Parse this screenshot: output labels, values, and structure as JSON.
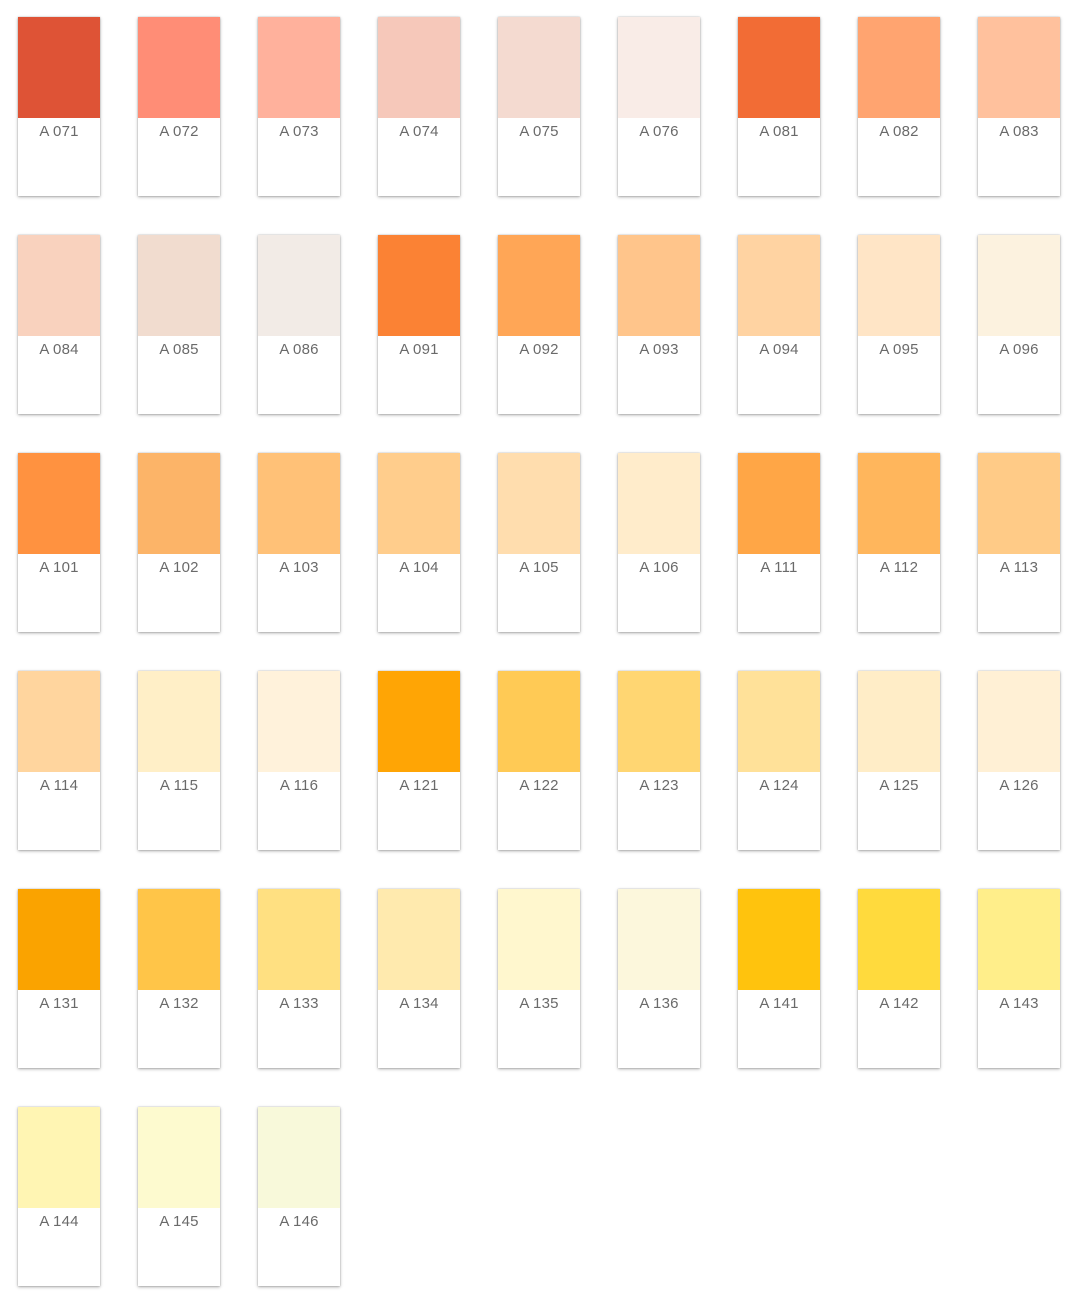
{
  "swatches": [
    {
      "code": "A 071",
      "color": "#DE5336"
    },
    {
      "code": "A 072",
      "color": "#FF8D76"
    },
    {
      "code": "A 073",
      "color": "#FFB19C"
    },
    {
      "code": "A 074",
      "color": "#F6C8BA"
    },
    {
      "code": "A 075",
      "color": "#F4DAD0"
    },
    {
      "code": "A 076",
      "color": "#F9ECE7"
    },
    {
      "code": "A 081",
      "color": "#F26C35"
    },
    {
      "code": "A 082",
      "color": "#FFA470"
    },
    {
      "code": "A 083",
      "color": "#FFC19D"
    },
    {
      "code": "A 084",
      "color": "#F9D2BE"
    },
    {
      "code": "A 085",
      "color": "#F1DCCF"
    },
    {
      "code": "A 086",
      "color": "#F2EBE6"
    },
    {
      "code": "A 091",
      "color": "#FB8234"
    },
    {
      "code": "A 092",
      "color": "#FFA656"
    },
    {
      "code": "A 093",
      "color": "#FFC58B"
    },
    {
      "code": "A 094",
      "color": "#FFD3A2"
    },
    {
      "code": "A 095",
      "color": "#FFE5C6"
    },
    {
      "code": "A 096",
      "color": "#FCF2DF"
    },
    {
      "code": "A 101",
      "color": "#FF9240"
    },
    {
      "code": "A 102",
      "color": "#FCB468"
    },
    {
      "code": "A 103",
      "color": "#FFC177"
    },
    {
      "code": "A 104",
      "color": "#FFCD8C"
    },
    {
      "code": "A 105",
      "color": "#FFDDAE"
    },
    {
      "code": "A 106",
      "color": "#FFECCB"
    },
    {
      "code": "A 111",
      "color": "#FFA646"
    },
    {
      "code": "A 112",
      "color": "#FFB65C"
    },
    {
      "code": "A 113",
      "color": "#FFCB87"
    },
    {
      "code": "A 114",
      "color": "#FFD59E"
    },
    {
      "code": "A 115",
      "color": "#FFEFC7"
    },
    {
      "code": "A 116",
      "color": "#FFF2DB"
    },
    {
      "code": "A 121",
      "color": "#FFA505"
    },
    {
      "code": "A 122",
      "color": "#FFCA55"
    },
    {
      "code": "A 123",
      "color": "#FFD672"
    },
    {
      "code": "A 124",
      "color": "#FFE199"
    },
    {
      "code": "A 125",
      "color": "#FFEDC7"
    },
    {
      "code": "A 126",
      "color": "#FFF0D5"
    },
    {
      "code": "A 131",
      "color": "#FAA300"
    },
    {
      "code": "A 132",
      "color": "#FFC548"
    },
    {
      "code": "A 133",
      "color": "#FFE081"
    },
    {
      "code": "A 134",
      "color": "#FFEAAE"
    },
    {
      "code": "A 135",
      "color": "#FFF7CE"
    },
    {
      "code": "A 136",
      "color": "#FCF7DC"
    },
    {
      "code": "A 141",
      "color": "#FFC30D"
    },
    {
      "code": "A 142",
      "color": "#FFDA3D"
    },
    {
      "code": "A 143",
      "color": "#FFEE8A"
    },
    {
      "code": "A 144",
      "color": "#FFF5B3"
    },
    {
      "code": "A 145",
      "color": "#FDFACF"
    },
    {
      "code": "A 146",
      "color": "#F8F9DA"
    }
  ]
}
